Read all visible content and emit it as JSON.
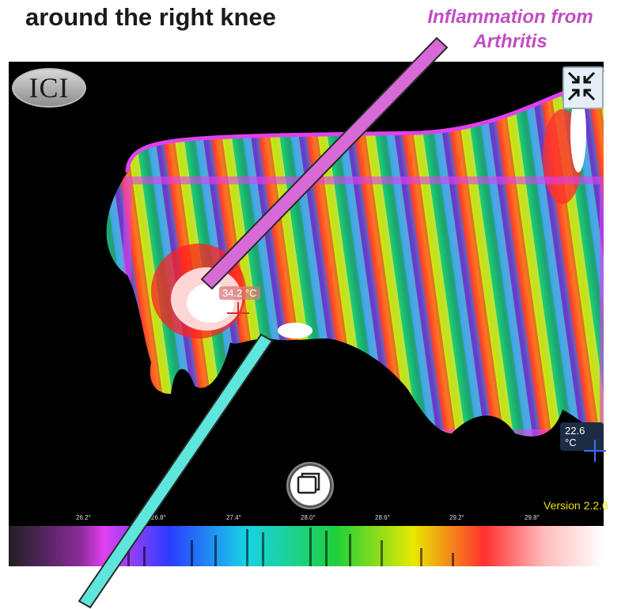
{
  "captions": {
    "left": "around the right knee",
    "right_line1": "Inflammation from",
    "right_line2": "Arthritis"
  },
  "logo_text": "ICI",
  "icons": {
    "collapse": "collapse-arrows-icon",
    "capture": "capture-icon",
    "crosshair": "crosshair-icon"
  },
  "readouts": {
    "max_temp": "34.2 °C",
    "min_temp": "22.6 °C"
  },
  "version": "Version 2.2.6",
  "palette": {
    "ticks": [
      "26.2°",
      "26.8°",
      "27.4°",
      "28.0°",
      "28.6°",
      "29.2°",
      "29.8°"
    ]
  },
  "colors": {
    "pointer_magenta": "#d86ad8",
    "pointer_cyan": "#5ee6dc",
    "caption_magenta": "#c04ec4",
    "version_yellow": "#e8e000"
  }
}
